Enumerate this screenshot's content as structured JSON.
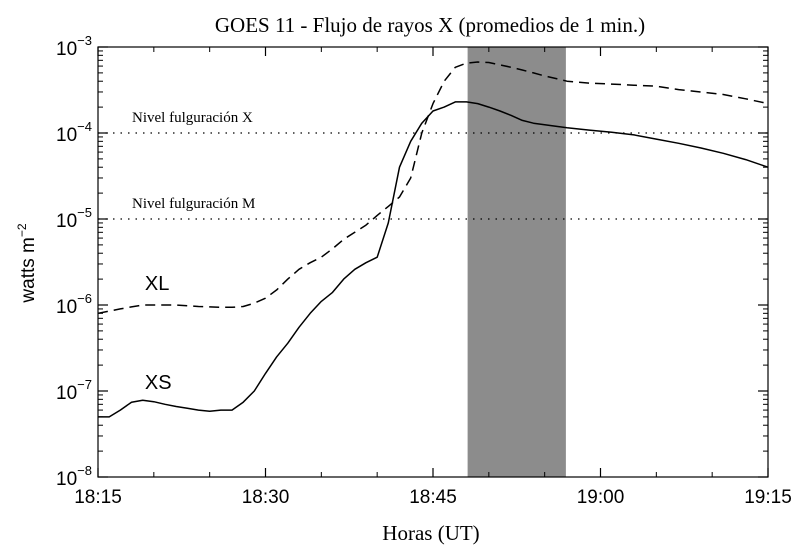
{
  "chart_data": {
    "type": "line",
    "title": "GOES 11 - Flujo de rayos X (promedios de 1 min.)",
    "xlabel": "Horas (UT)",
    "ylabel_main": "watts m",
    "ylabel_exp": "−2",
    "y_scale": "log",
    "x_unit": "minutes after 18:15",
    "xlim": [
      0,
      60
    ],
    "ylim": [
      1e-08,
      0.001
    ],
    "x_ticks": [
      {
        "x": 0,
        "label": "18:15"
      },
      {
        "x": 15,
        "label": "18:30"
      },
      {
        "x": 30,
        "label": "18:45"
      },
      {
        "x": 45,
        "label": "19:00"
      },
      {
        "x": 60,
        "label": "19:15"
      }
    ],
    "y_ticks": [
      {
        "value": 1e-08,
        "base": "10",
        "exp": "−8"
      },
      {
        "value": 1e-07,
        "base": "10",
        "exp": "−7"
      },
      {
        "value": 1e-06,
        "base": "10",
        "exp": "−6"
      },
      {
        "value": 1e-05,
        "base": "10",
        "exp": "−5"
      },
      {
        "value": 0.0001,
        "base": "10",
        "exp": "−4"
      },
      {
        "value": 0.001,
        "base": "10",
        "exp": "−3"
      }
    ],
    "shaded_region": {
      "x_start": 33.1,
      "x_end": 41.9,
      "color": "#8c8c8c"
    },
    "reference_lines": [
      {
        "label": "Nivel fulguración X",
        "value": 0.0001
      },
      {
        "label": "Nivel fulguración M",
        "value": 1e-05
      }
    ],
    "series": [
      {
        "name": "XL",
        "style": "dashed",
        "x": [
          0,
          1,
          2,
          3,
          4,
          5,
          6,
          7,
          8,
          9,
          10,
          11,
          12,
          13,
          14,
          15,
          16,
          17,
          18,
          19,
          20,
          21,
          22,
          23,
          24,
          25,
          26,
          27,
          28,
          29,
          30,
          31,
          32,
          33,
          34,
          35,
          36,
          37,
          38,
          39,
          40,
          41,
          42,
          44,
          46,
          48,
          50,
          52,
          54,
          56,
          58,
          60
        ],
        "values": [
          8e-07,
          8.5e-07,
          9e-07,
          9.5e-07,
          1e-06,
          1e-06,
          1e-06,
          1e-06,
          9.8e-07,
          9.6e-07,
          9.5e-07,
          9.4e-07,
          9.4e-07,
          9.6e-07,
          1.05e-06,
          1.2e-06,
          1.5e-06,
          2e-06,
          2.6e-06,
          3.1e-06,
          3.6e-06,
          4.5e-06,
          5.8e-06,
          7e-06,
          8.5e-06,
          1.1e-05,
          1.4e-05,
          1.8e-05,
          3e-05,
          0.0001,
          0.00022,
          0.0004,
          0.00058,
          0.00065,
          0.00067,
          0.00066,
          0.00062,
          0.00058,
          0.00054,
          0.0005,
          0.00046,
          0.00043,
          0.0004,
          0.00038,
          0.00037,
          0.00036,
          0.00035,
          0.00032,
          0.0003,
          0.00028,
          0.00025,
          0.00022
        ]
      },
      {
        "name": "XS",
        "style": "solid",
        "x": [
          0,
          1,
          2,
          3,
          4,
          5,
          6,
          7,
          8,
          9,
          10,
          11,
          12,
          13,
          14,
          15,
          16,
          17,
          18,
          19,
          20,
          21,
          22,
          23,
          24,
          25,
          26,
          27,
          28,
          29,
          30,
          31,
          32,
          33,
          34,
          35,
          36,
          37,
          38,
          39,
          40,
          41,
          42,
          44,
          46,
          48,
          50,
          52,
          54,
          56,
          58,
          60
        ],
        "values": [
          5e-08,
          5e-08,
          6e-08,
          7.4e-08,
          7.8e-08,
          7.5e-08,
          7e-08,
          6.6e-08,
          6.3e-08,
          6e-08,
          5.8e-08,
          6e-08,
          6e-08,
          7.4e-08,
          1e-07,
          1.6e-07,
          2.5e-07,
          3.6e-07,
          5.5e-07,
          8e-07,
          1.1e-06,
          1.4e-06,
          2e-06,
          2.6e-06,
          3.1e-06,
          3.6e-06,
          9e-06,
          4e-05,
          8e-05,
          0.00013,
          0.00018,
          0.0002,
          0.00023,
          0.00023,
          0.00022,
          0.0002,
          0.00018,
          0.00016,
          0.00014,
          0.00013,
          0.000125,
          0.00012,
          0.000115,
          0.000108,
          0.000102,
          9.5e-05,
          8.5e-05,
          7.6e-05,
          6.7e-05,
          5.8e-05,
          4.9e-05,
          4e-05
        ]
      }
    ]
  }
}
